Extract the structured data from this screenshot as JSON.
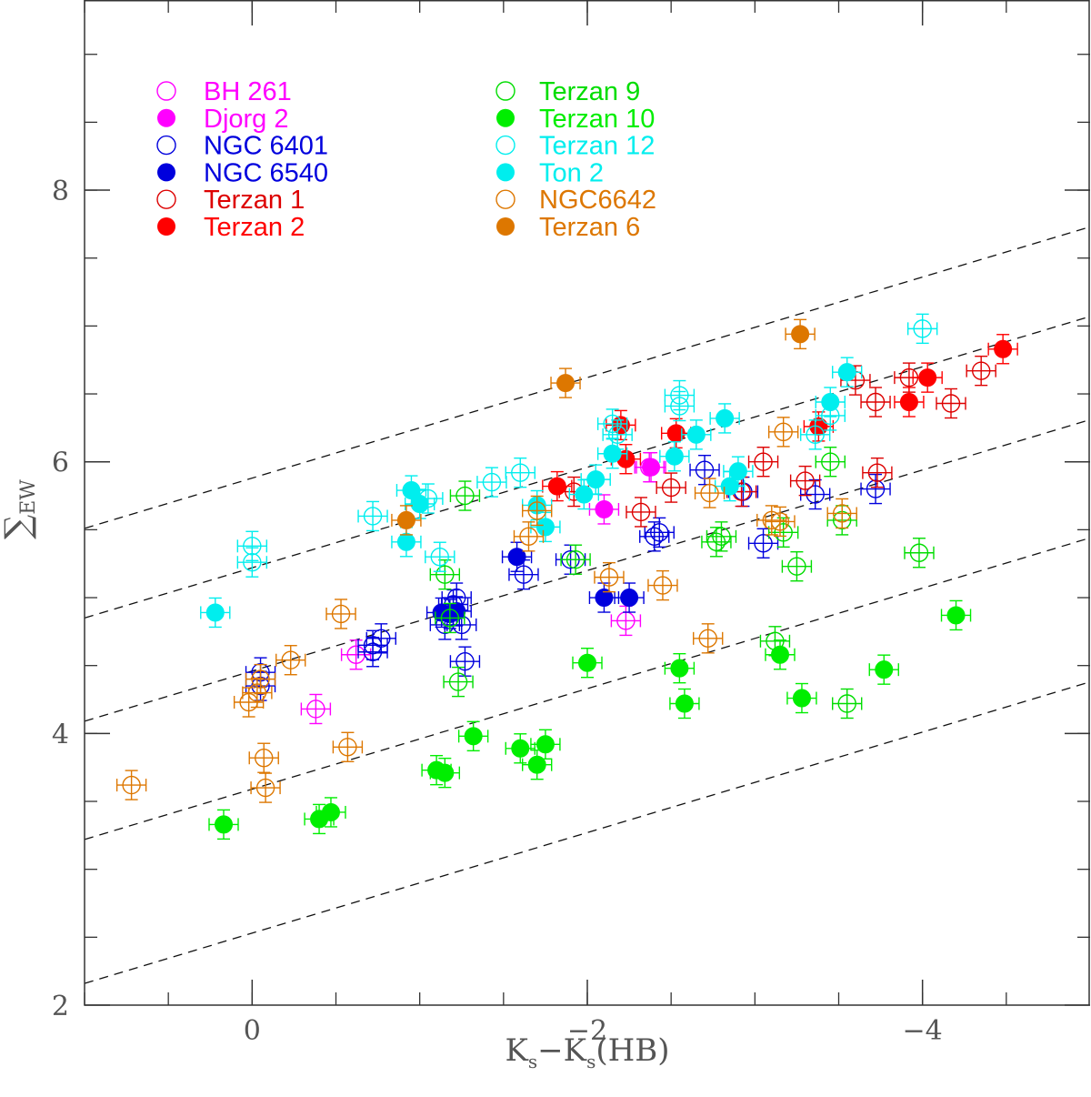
{
  "chart_data": {
    "type": "scatter",
    "title": "",
    "xlabel": "Ks−Ks(HB)",
    "xlabel_parts": {
      "k1": "K",
      "s1": "s",
      "mid": "−K",
      "s2": "s",
      "hb": "(HB)"
    },
    "ylabel": "∑EW",
    "ylabel_parts": {
      "sigma": "∑",
      "sub": "EW"
    },
    "xlim": [
      1.0,
      -5.0
    ],
    "ylim": [
      2.0,
      9.4
    ],
    "x_ticks": [
      0,
      -2,
      -4
    ],
    "x_tick_labels": [
      "0",
      "−2",
      "−4"
    ],
    "x_minor_ticks": [
      1,
      0.5,
      0,
      -0.5,
      -1,
      -1.5,
      -2,
      -2.5,
      -3,
      -3.5,
      -4,
      -4.5
    ],
    "y_ticks": [
      4,
      6,
      8
    ],
    "y_tick_labels": [
      "4",
      "6",
      "8"
    ],
    "y_minor_ticks": [
      2.5,
      3,
      3.5,
      4,
      4.5,
      5,
      5.5,
      6,
      6.5,
      7,
      7.5,
      8,
      8.5,
      9
    ],
    "grid": false,
    "legend_position": "top-left",
    "reference_lines": [
      {
        "slope": -0.37,
        "intercept": 5.88
      },
      {
        "slope": -0.37,
        "intercept": 5.22
      },
      {
        "slope": -0.37,
        "intercept": 4.46
      },
      {
        "slope": -0.37,
        "intercept": 3.59
      },
      {
        "slope": -0.37,
        "intercept": 2.53
      }
    ],
    "series": [
      {
        "name": "BH 261",
        "color": "#ff00ff",
        "filled": false,
        "points": [
          [
            -0.62,
            4.58
          ],
          [
            -0.38,
            4.18
          ],
          [
            -2.23,
            4.83
          ],
          [
            -2.37,
            5.96
          ]
        ]
      },
      {
        "name": "Djorg 2",
        "color": "#ff00ff",
        "filled": true,
        "points": [
          [
            -2.1,
            5.65
          ],
          [
            -2.38,
            5.96
          ]
        ]
      },
      {
        "name": "NGC 6401",
        "color": "#0000dd",
        "filled": false,
        "points": [
          [
            -0.05,
            4.45
          ],
          [
            -0.05,
            4.35
          ],
          [
            -0.72,
            4.6
          ],
          [
            -0.72,
            4.65
          ],
          [
            -0.77,
            4.7
          ],
          [
            -1.15,
            4.8
          ],
          [
            -1.2,
            4.95
          ],
          [
            -1.22,
            5.0
          ],
          [
            -1.25,
            4.8
          ],
          [
            -1.27,
            4.53
          ],
          [
            -1.62,
            5.17
          ],
          [
            -1.9,
            5.28
          ],
          [
            -2.4,
            5.45
          ],
          [
            -2.43,
            5.48
          ],
          [
            -2.7,
            5.94
          ],
          [
            -2.93,
            5.78
          ],
          [
            -3.05,
            5.4
          ],
          [
            -3.36,
            5.76
          ],
          [
            -3.72,
            5.8
          ]
        ]
      },
      {
        "name": "NGC 6540",
        "color": "#0000dd",
        "filled": true,
        "points": [
          [
            -1.13,
            4.89
          ],
          [
            -1.18,
            4.88
          ],
          [
            -1.22,
            4.9
          ],
          [
            -1.58,
            5.3
          ],
          [
            -2.1,
            5.0
          ],
          [
            -2.25,
            5.0
          ]
        ]
      },
      {
        "name": "Terzan 1",
        "color": "#dd0000",
        "filled": false,
        "points": [
          [
            -1.92,
            5.78
          ],
          [
            -2.32,
            5.63
          ],
          [
            -2.5,
            5.81
          ],
          [
            -2.92,
            5.78
          ],
          [
            -3.05,
            6.0
          ],
          [
            -3.3,
            5.86
          ],
          [
            -3.6,
            6.6
          ],
          [
            -3.72,
            6.44
          ],
          [
            -3.73,
            5.92
          ],
          [
            -3.92,
            6.62
          ],
          [
            -4.17,
            6.43
          ],
          [
            -4.35,
            6.67
          ]
        ]
      },
      {
        "name": "Terzan 2",
        "color": "#ff0000",
        "filled": true,
        "points": [
          [
            -1.82,
            5.82
          ],
          [
            -2.2,
            6.27
          ],
          [
            -2.23,
            6.02
          ],
          [
            -2.53,
            6.21
          ],
          [
            -3.38,
            6.26
          ],
          [
            -3.92,
            6.44
          ],
          [
            -4.03,
            6.62
          ],
          [
            -4.48,
            6.83
          ]
        ]
      },
      {
        "name": "Terzan 9",
        "color": "#00dd00",
        "filled": false,
        "points": [
          [
            -1.15,
            5.17
          ],
          [
            -1.18,
            4.85
          ],
          [
            -1.23,
            4.38
          ],
          [
            -1.27,
            5.75
          ],
          [
            -1.93,
            5.28
          ],
          [
            -2.77,
            5.41
          ],
          [
            -2.8,
            5.45
          ],
          [
            -3.12,
            4.68
          ],
          [
            -3.17,
            5.48
          ],
          [
            -3.25,
            5.23
          ],
          [
            -3.45,
            6.0
          ],
          [
            -3.52,
            5.57
          ],
          [
            -3.55,
            4.22
          ],
          [
            -3.98,
            5.33
          ]
        ]
      },
      {
        "name": "Terzan 10",
        "color": "#00ee00",
        "filled": true,
        "points": [
          [
            0.17,
            3.33
          ],
          [
            -0.4,
            3.37
          ],
          [
            -0.47,
            3.42
          ],
          [
            -1.1,
            3.73
          ],
          [
            -1.15,
            3.71
          ],
          [
            -1.32,
            3.98
          ],
          [
            -1.6,
            3.89
          ],
          [
            -1.7,
            3.77
          ],
          [
            -1.75,
            3.92
          ],
          [
            -2.0,
            4.52
          ],
          [
            -2.55,
            4.48
          ],
          [
            -2.58,
            4.22
          ],
          [
            -3.15,
            4.58
          ],
          [
            -3.28,
            4.26
          ],
          [
            -3.77,
            4.47
          ],
          [
            -4.2,
            4.87
          ]
        ]
      },
      {
        "name": "Terzan 12",
        "color": "#00eeee",
        "filled": false,
        "points": [
          [
            0.0,
            5.38
          ],
          [
            0.0,
            5.26
          ],
          [
            -0.72,
            5.6
          ],
          [
            -1.05,
            5.73
          ],
          [
            -1.12,
            5.3
          ],
          [
            -1.43,
            5.85
          ],
          [
            -1.6,
            5.92
          ],
          [
            -2.15,
            6.28
          ],
          [
            -2.18,
            6.2
          ],
          [
            -2.55,
            6.49
          ],
          [
            -2.55,
            6.41
          ],
          [
            -3.36,
            6.2
          ],
          [
            -3.45,
            6.34
          ],
          [
            -4.0,
            6.98
          ]
        ]
      },
      {
        "name": "Ton 2",
        "color": "#00eeee",
        "filled": true,
        "points": [
          [
            0.22,
            4.89
          ],
          [
            -0.92,
            5.41
          ],
          [
            -0.95,
            5.79
          ],
          [
            -1.0,
            5.69
          ],
          [
            -1.7,
            5.68
          ],
          [
            -1.75,
            5.52
          ],
          [
            -1.98,
            5.76
          ],
          [
            -2.05,
            5.87
          ],
          [
            -2.15,
            6.06
          ],
          [
            -2.52,
            6.04
          ],
          [
            -2.65,
            6.2
          ],
          [
            -2.82,
            6.32
          ],
          [
            -2.85,
            5.82
          ],
          [
            -2.9,
            5.93
          ],
          [
            -3.45,
            6.44
          ],
          [
            -3.55,
            6.66
          ]
        ]
      },
      {
        "name": "NGC6642",
        "color": "#dd7700",
        "filled": false,
        "points": [
          [
            0.72,
            3.62
          ],
          [
            0.02,
            4.23
          ],
          [
            -0.03,
            4.3
          ],
          [
            -0.05,
            4.4
          ],
          [
            -0.07,
            3.82
          ],
          [
            -0.08,
            3.6
          ],
          [
            -0.23,
            4.54
          ],
          [
            -0.53,
            4.88
          ],
          [
            -0.57,
            3.9
          ],
          [
            -1.65,
            5.45
          ],
          [
            -1.7,
            5.64
          ],
          [
            -2.13,
            5.15
          ],
          [
            -2.45,
            5.09
          ],
          [
            -2.72,
            4.7
          ],
          [
            -2.73,
            5.77
          ],
          [
            -3.1,
            5.57
          ],
          [
            -3.15,
            5.56
          ],
          [
            -3.17,
            6.22
          ],
          [
            -3.52,
            5.62
          ]
        ]
      },
      {
        "name": "Terzan 6",
        "color": "#dd7700",
        "filled": true,
        "points": [
          [
            -0.92,
            5.57
          ],
          [
            -1.87,
            6.58
          ],
          [
            -3.27,
            6.94
          ]
        ]
      }
    ],
    "legend_columns": [
      [
        "BH 261",
        "Djorg 2",
        "NGC 6401",
        "NGC 6540",
        "Terzan 1",
        "Terzan 2"
      ],
      [
        "Terzan 9",
        "Terzan 10",
        "Terzan 12",
        "Ton 2",
        "NGC6642",
        "Terzan 6"
      ]
    ]
  }
}
